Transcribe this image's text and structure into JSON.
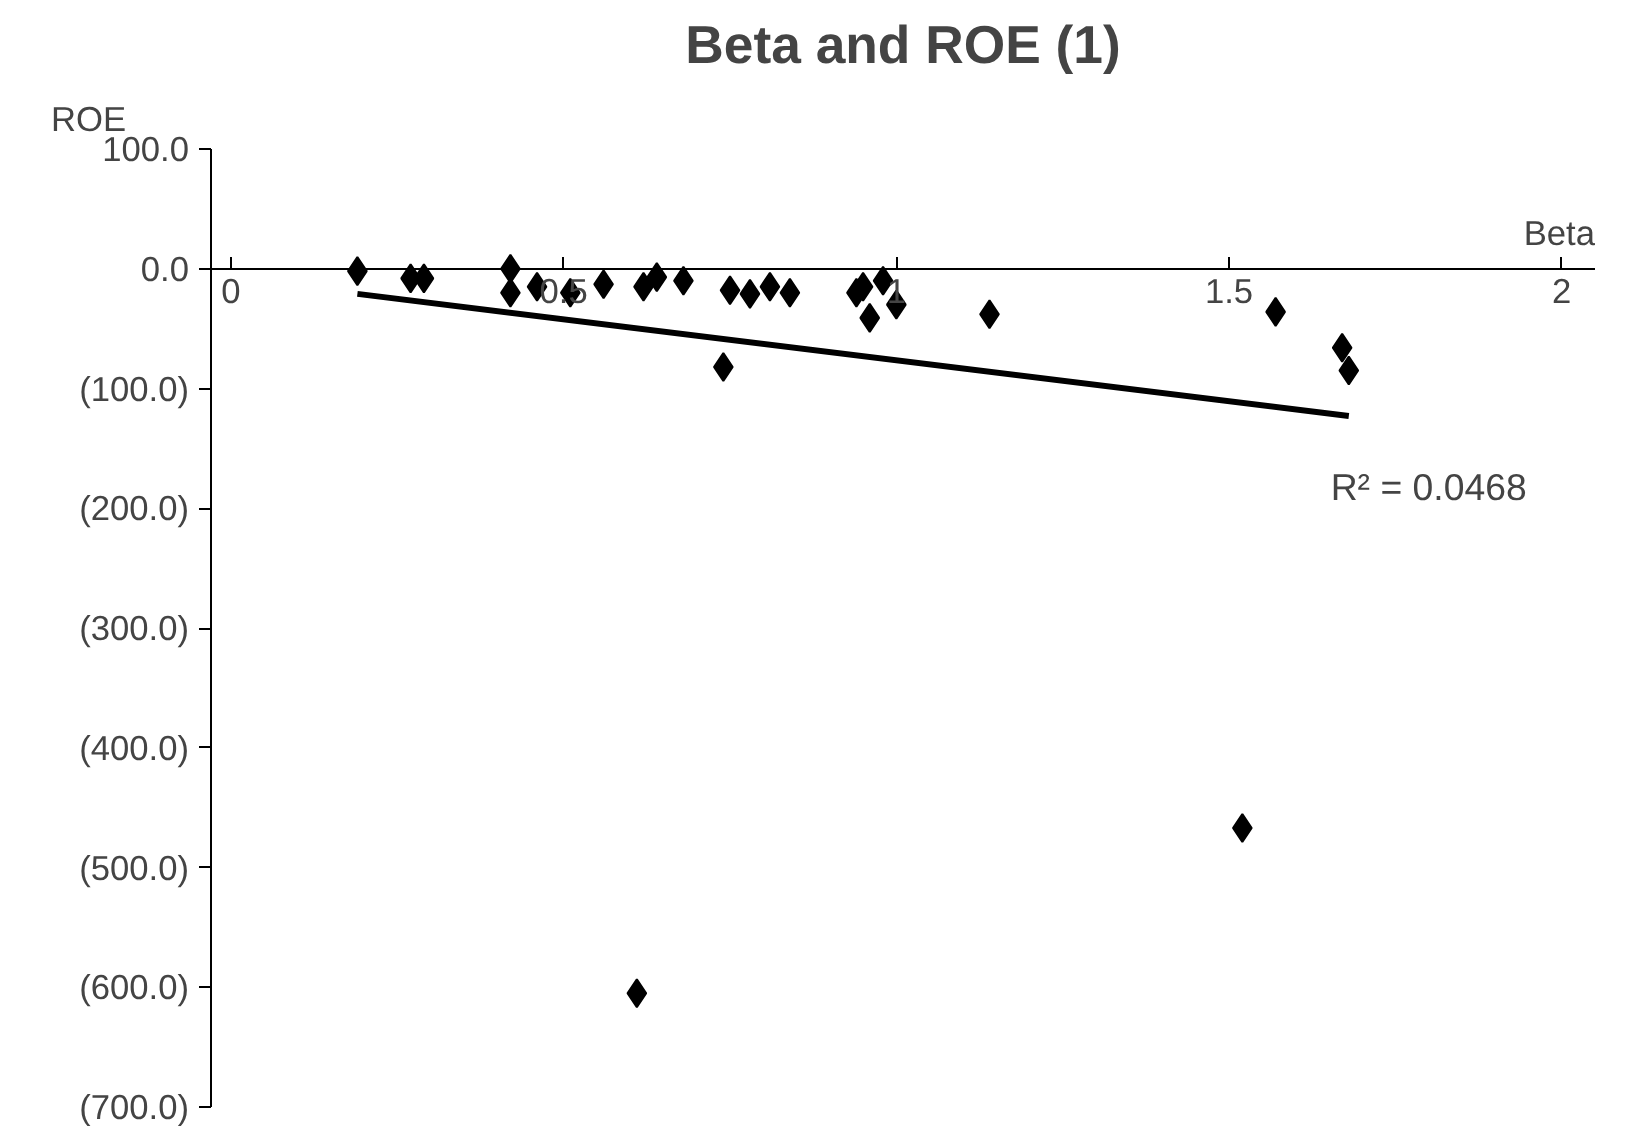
{
  "chart_data": {
    "type": "scatter",
    "title": "Beta and ROE (1)",
    "xlabel": "Beta",
    "ylabel": "ROE",
    "xlim": [
      -0.03,
      2.05
    ],
    "ylim": [
      -700,
      100
    ],
    "xticks": [
      0,
      0.5,
      1,
      1.5,
      2
    ],
    "yticks": [
      {
        "value": 100,
        "label": "100.0"
      },
      {
        "value": 0,
        "label": "0.0"
      },
      {
        "value": -100,
        "label": "(100.0)"
      },
      {
        "value": -200,
        "label": "(200.0)"
      },
      {
        "value": -300,
        "label": "(300.0)"
      },
      {
        "value": -400,
        "label": "(400.0)"
      },
      {
        "value": -500,
        "label": "(500.0)"
      },
      {
        "value": -600,
        "label": "(600.0)"
      },
      {
        "value": -700,
        "label": "(700.0)"
      }
    ],
    "grid": false,
    "annotations": [
      "R² = 0.0468"
    ],
    "series": [
      {
        "marker": "diamond",
        "color": "#000000",
        "x": [
          0.19,
          0.27,
          0.29,
          0.42,
          0.42,
          0.46,
          0.51,
          0.56,
          0.62,
          0.64,
          0.68,
          0.74,
          0.75,
          0.78,
          0.81,
          0.84,
          0.94,
          0.95,
          0.96,
          0.98,
          1.0,
          1.14,
          1.57,
          1.67,
          1.68,
          1.52,
          0.61
        ],
        "values": [
          -2,
          -8,
          -8,
          0,
          -20,
          -15,
          -20,
          -13,
          -15,
          -7,
          -10,
          -82,
          -18,
          -21,
          -15,
          -20,
          -20,
          -15,
          -41,
          -10,
          -30,
          -38,
          -36,
          -66,
          -85,
          -467,
          -605
        ]
      },
      {
        "type": "line",
        "color": "#000000",
        "x": [
          0.19,
          1.68
        ],
        "values": [
          -21,
          -123
        ]
      }
    ]
  }
}
